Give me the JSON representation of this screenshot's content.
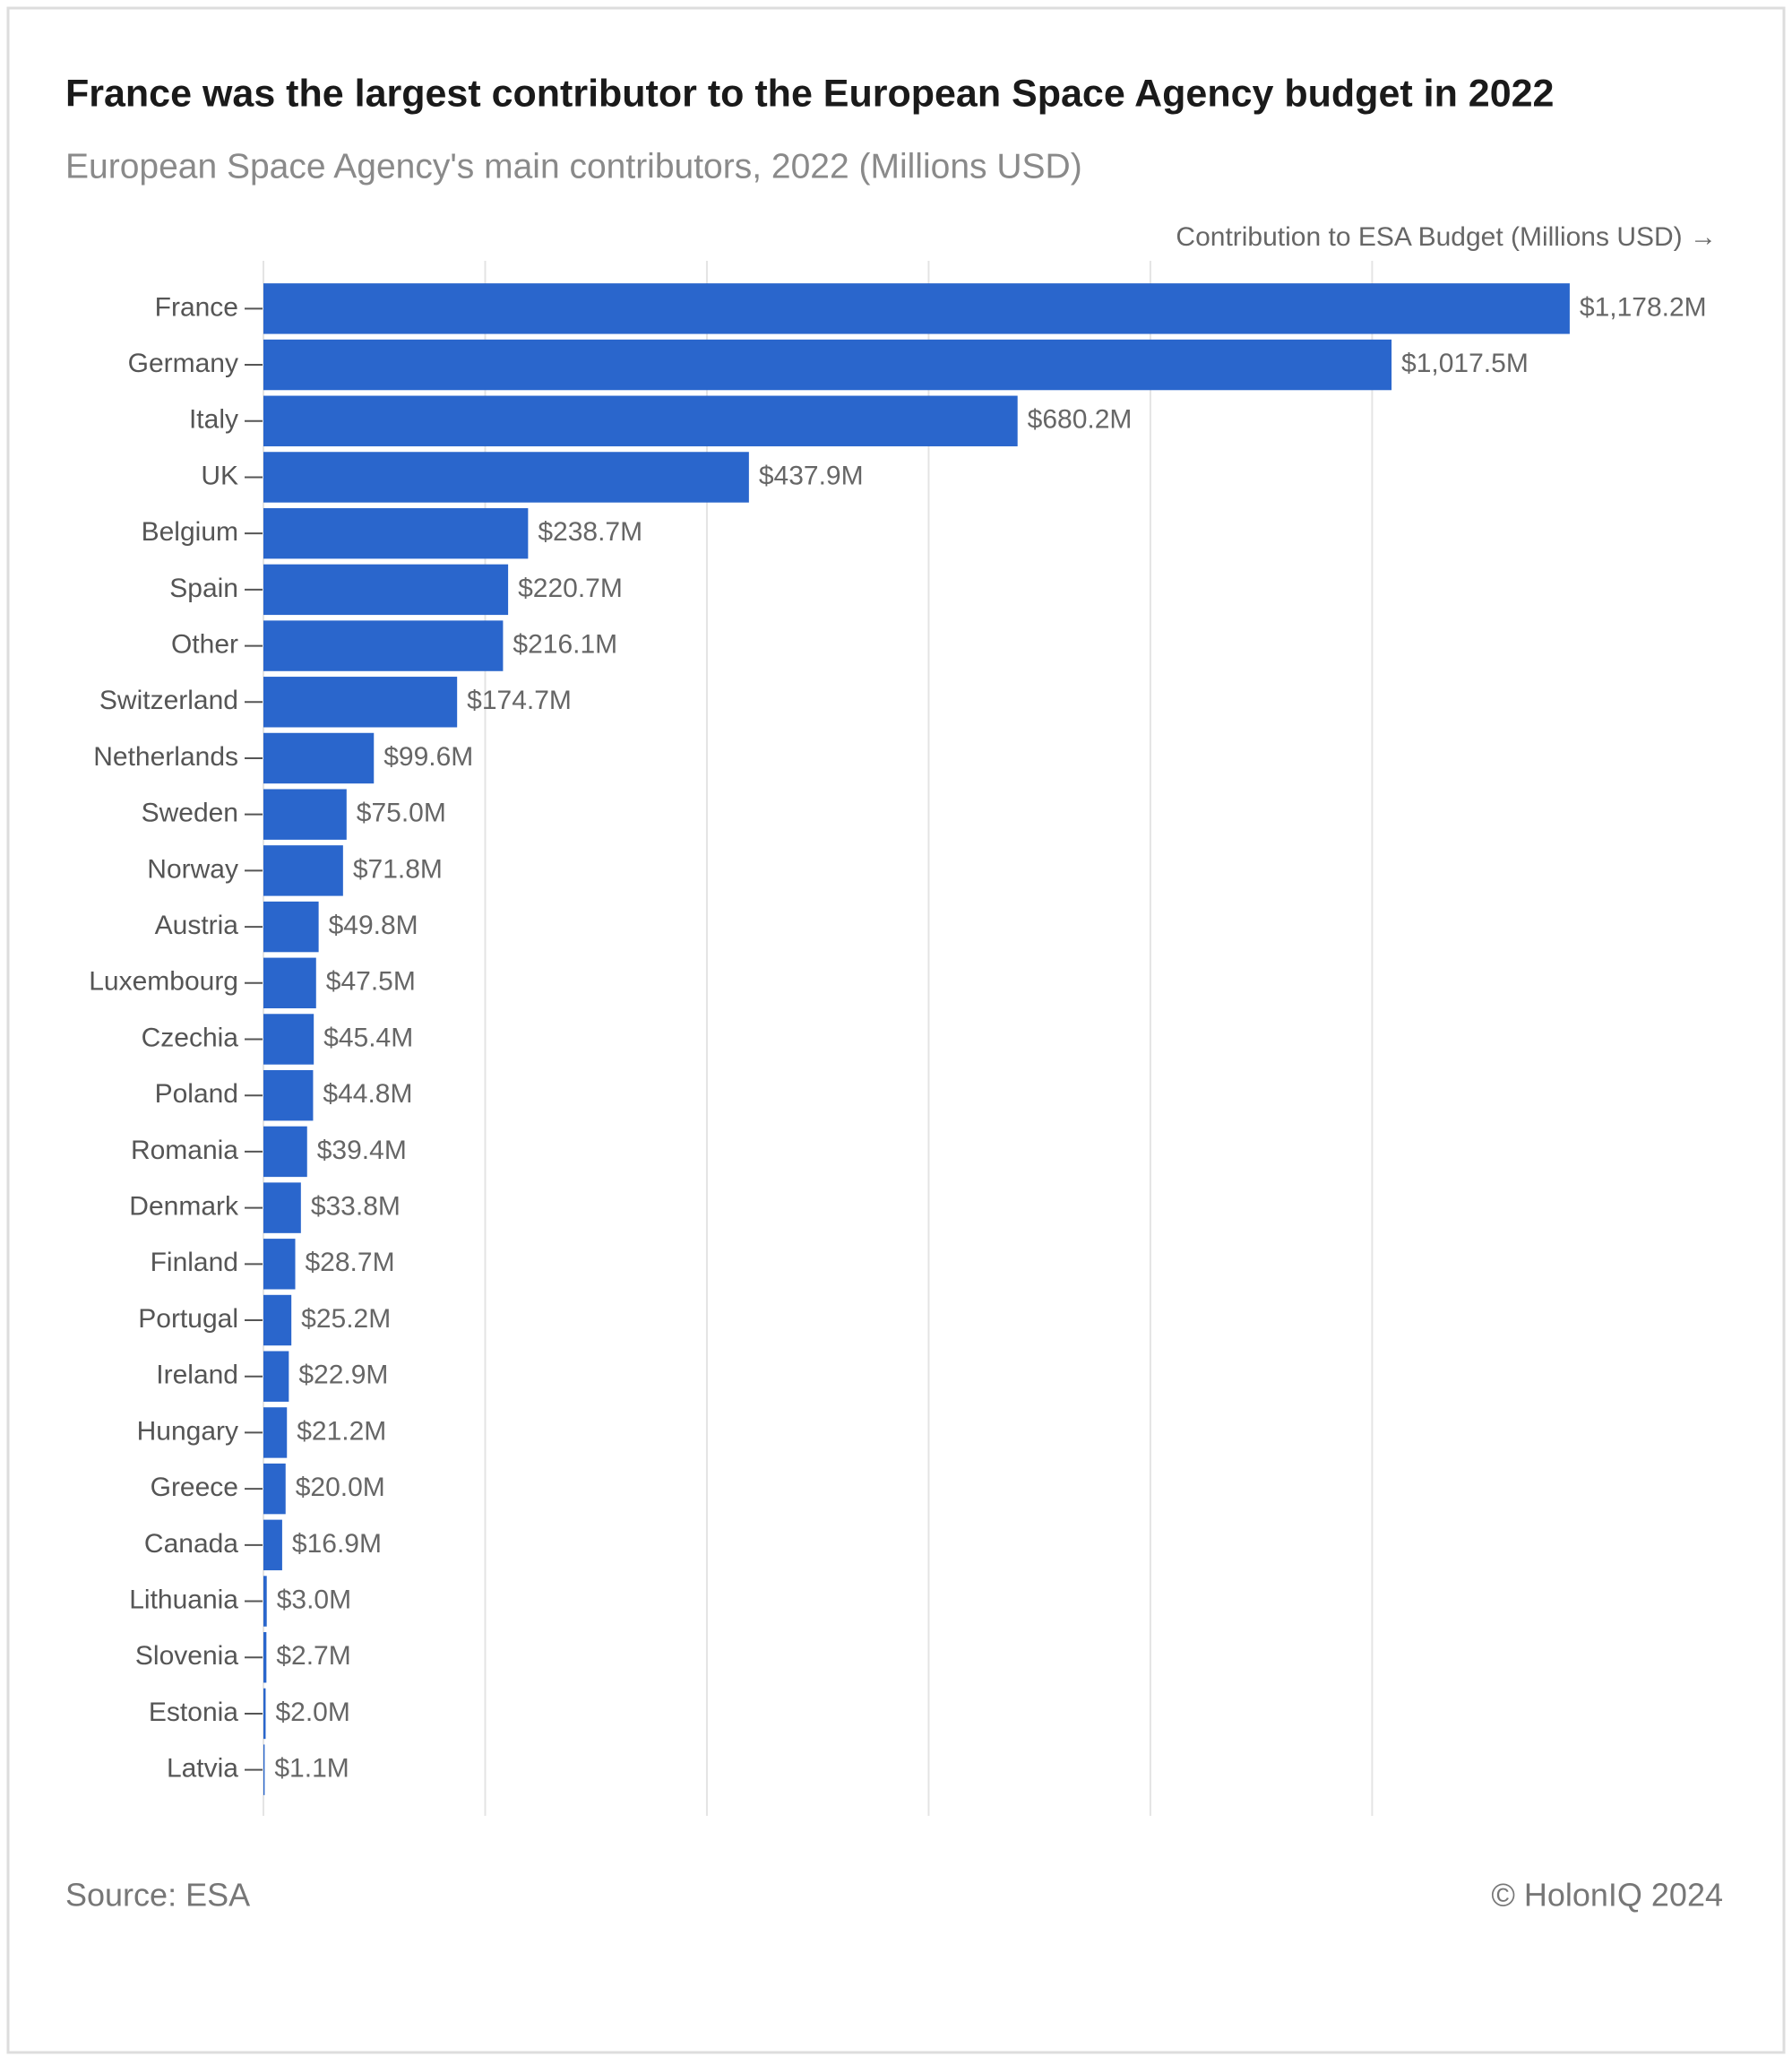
{
  "chart_data": {
    "type": "bar",
    "orientation": "horizontal",
    "title": "France was the largest contributor to the European Space Agency budget in 2022",
    "subtitle": "European Space Agency's main contributors, 2022 (Millions USD)",
    "x_label": "Contribution to ESA Budget (Millions USD) →",
    "categories": [
      "France",
      "Germany",
      "Italy",
      "UK",
      "Belgium",
      "Spain",
      "Other",
      "Switzerland",
      "Netherlands",
      "Sweden",
      "Norway",
      "Austria",
      "Luxembourg",
      "Czechia",
      "Poland",
      "Romania",
      "Denmark",
      "Finland",
      "Portugal",
      "Ireland",
      "Hungary",
      "Greece",
      "Canada",
      "Lithuania",
      "Slovenia",
      "Estonia",
      "Latvia"
    ],
    "values": [
      1178.2,
      1017.5,
      680.2,
      437.9,
      238.7,
      220.7,
      216.1,
      174.7,
      99.6,
      75.0,
      71.8,
      49.8,
      47.5,
      45.4,
      44.8,
      39.4,
      33.8,
      28.7,
      25.2,
      22.9,
      21.2,
      20.0,
      16.9,
      3.0,
      2.7,
      2.0,
      1.1
    ],
    "value_labels": [
      "$1,178.2M",
      "$1,017.5M",
      "$680.2M",
      "$437.9M",
      "$238.7M",
      "$220.7M",
      "$216.1M",
      "$174.7M",
      "$99.6M",
      "$75.0M",
      "$71.8M",
      "$49.8M",
      "$47.5M",
      "$45.4M",
      "$44.8M",
      "$39.4M",
      "$33.8M",
      "$28.7M",
      "$25.2M",
      "$22.9M",
      "$21.2M",
      "$20.0M",
      "$16.9M",
      "$3.0M",
      "$2.7M",
      "$2.0M",
      "$1.1M"
    ],
    "color": "#2a66cc",
    "xlim": [
      0,
      1310
    ],
    "xticks": [
      0,
      200,
      400,
      600,
      800,
      1000
    ],
    "grid": true,
    "source": "Source: ESA",
    "credit": "© HolonIQ 2024"
  }
}
